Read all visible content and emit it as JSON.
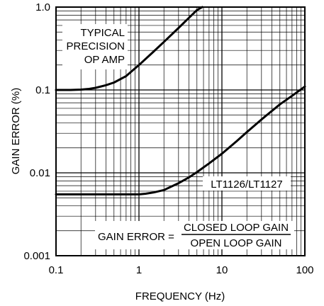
{
  "chart_data": {
    "type": "line",
    "xscale": "log",
    "yscale": "log",
    "xlim": [
      0.1,
      100
    ],
    "ylim": [
      0.001,
      1.0
    ],
    "xlabel": "FREQUENCY (Hz)",
    "ylabel": "GAIN ERROR (%)",
    "xticks": [
      {
        "value": 0.1,
        "label": "0.1"
      },
      {
        "value": 1,
        "label": "1"
      },
      {
        "value": 10,
        "label": "10"
      },
      {
        "value": 100,
        "label": "100"
      }
    ],
    "yticks": [
      {
        "value": 0.001,
        "label": "0.001"
      },
      {
        "value": 0.01,
        "label": "0.01"
      },
      {
        "value": 0.1,
        "label": "0.1"
      },
      {
        "value": 1.0,
        "label": "1.0"
      }
    ],
    "grid": true,
    "series": [
      {
        "name": "TYPICAL PRECISION OP AMP",
        "x": [
          0.1,
          0.15,
          0.2,
          0.25,
          0.3,
          0.4,
          0.5,
          0.7,
          1.0,
          1.5,
          2.0,
          3.0,
          4.0,
          5.0,
          5.8
        ],
        "y": [
          0.1,
          0.1,
          0.101,
          0.103,
          0.106,
          0.114,
          0.123,
          0.147,
          0.2,
          0.29,
          0.38,
          0.56,
          0.74,
          0.92,
          1.0
        ]
      },
      {
        "name": "LT1126/LT1127",
        "x": [
          0.1,
          0.3,
          0.6,
          1.0,
          1.2,
          1.5,
          2.0,
          3.0,
          4.0,
          5.0,
          7.0,
          10,
          15,
          20,
          30,
          50,
          70,
          100
        ],
        "y": [
          0.0055,
          0.0055,
          0.0055,
          0.0055,
          0.0056,
          0.0058,
          0.0062,
          0.0075,
          0.0088,
          0.0102,
          0.013,
          0.017,
          0.024,
          0.031,
          0.044,
          0.067,
          0.085,
          0.11
        ]
      }
    ],
    "annotations": [
      {
        "lines": [
          "TYPICAL",
          "PRECISION",
          "OP AMP"
        ]
      },
      {
        "text": "LT1126/LT1127"
      },
      {
        "lhs": "GAIN ERROR =",
        "numerator": "CLOSED LOOP GAIN",
        "denominator": "OPEN LOOP GAIN"
      }
    ]
  }
}
